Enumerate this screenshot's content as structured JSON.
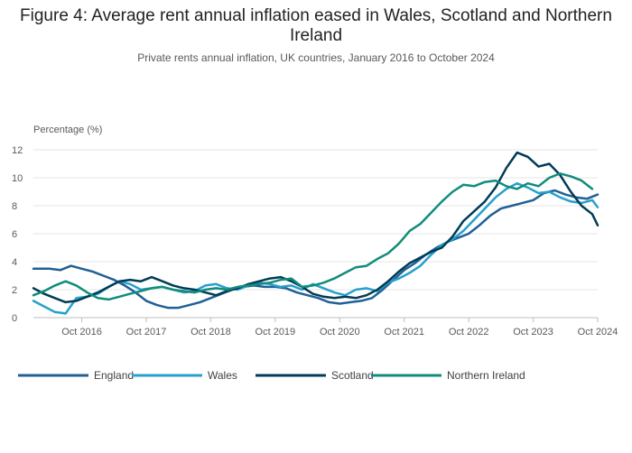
{
  "title": "Figure 4: Average rent annual inflation eased in Wales, Scotland and Northern Ireland",
  "subtitle": "Private rents annual inflation, UK countries, January 2016 to October 2024",
  "chart_data": {
    "type": "line",
    "ylabel": "Percentage (%)",
    "ylim": [
      0,
      12
    ],
    "yticks": [
      0,
      2,
      4,
      6,
      8,
      10,
      12
    ],
    "xrange": [
      "2016-01",
      "2024-10"
    ],
    "xtick_labels": [
      "Oct 2016",
      "Oct 2017",
      "Oct 2018",
      "Oct 2019",
      "Oct 2020",
      "Oct 2021",
      "Oct 2022",
      "Oct 2023",
      "Oct 2024"
    ],
    "xtick_dates": [
      "2016-10",
      "2017-10",
      "2018-10",
      "2019-10",
      "2020-10",
      "2021-10",
      "2022-10",
      "2023-10",
      "2024-10"
    ],
    "grid": "horizontal",
    "legend": "bottom",
    "series": [
      {
        "name": "England",
        "color": "#206095",
        "points": [
          [
            "2016-01",
            3.5
          ],
          [
            "2016-04",
            3.5
          ],
          [
            "2016-06",
            3.4
          ],
          [
            "2016-08",
            3.7
          ],
          [
            "2016-10",
            3.5
          ],
          [
            "2016-12",
            3.3
          ],
          [
            "2017-02",
            3.0
          ],
          [
            "2017-04",
            2.7
          ],
          [
            "2017-06",
            2.3
          ],
          [
            "2017-08",
            1.8
          ],
          [
            "2017-10",
            1.2
          ],
          [
            "2017-12",
            0.9
          ],
          [
            "2018-02",
            0.7
          ],
          [
            "2018-04",
            0.7
          ],
          [
            "2018-06",
            0.9
          ],
          [
            "2018-08",
            1.1
          ],
          [
            "2018-10",
            1.4
          ],
          [
            "2018-12",
            1.7
          ],
          [
            "2019-02",
            2.0
          ],
          [
            "2019-04",
            2.2
          ],
          [
            "2019-06",
            2.3
          ],
          [
            "2019-08",
            2.2
          ],
          [
            "2019-10",
            2.2
          ],
          [
            "2019-12",
            2.1
          ],
          [
            "2020-02",
            1.8
          ],
          [
            "2020-04",
            1.6
          ],
          [
            "2020-06",
            1.4
          ],
          [
            "2020-08",
            1.1
          ],
          [
            "2020-10",
            1.0
          ],
          [
            "2020-12",
            1.1
          ],
          [
            "2021-02",
            1.2
          ],
          [
            "2021-04",
            1.4
          ],
          [
            "2021-06",
            2.0
          ],
          [
            "2021-08",
            2.7
          ],
          [
            "2021-10",
            3.4
          ],
          [
            "2021-12",
            3.9
          ],
          [
            "2022-02",
            4.5
          ],
          [
            "2022-04",
            5.0
          ],
          [
            "2022-06",
            5.4
          ],
          [
            "2022-08",
            5.7
          ],
          [
            "2022-10",
            6.0
          ],
          [
            "2022-12",
            6.6
          ],
          [
            "2023-02",
            7.3
          ],
          [
            "2023-04",
            7.8
          ],
          [
            "2023-06",
            8.0
          ],
          [
            "2023-08",
            8.2
          ],
          [
            "2023-10",
            8.4
          ],
          [
            "2023-12",
            8.9
          ],
          [
            "2024-02",
            9.1
          ],
          [
            "2024-04",
            8.8
          ],
          [
            "2024-06",
            8.6
          ],
          [
            "2024-08",
            8.5
          ],
          [
            "2024-10",
            8.8
          ]
        ]
      },
      {
        "name": "Wales",
        "color": "#27a0cc",
        "points": [
          [
            "2016-01",
            1.2
          ],
          [
            "2016-03",
            0.8
          ],
          [
            "2016-05",
            0.4
          ],
          [
            "2016-07",
            0.3
          ],
          [
            "2016-09",
            1.4
          ],
          [
            "2016-11",
            1.5
          ],
          [
            "2017-01",
            1.7
          ],
          [
            "2017-03",
            2.2
          ],
          [
            "2017-05",
            2.6
          ],
          [
            "2017-07",
            2.4
          ],
          [
            "2017-09",
            2.0
          ],
          [
            "2017-11",
            2.1
          ],
          [
            "2018-01",
            2.2
          ],
          [
            "2018-03",
            2.0
          ],
          [
            "2018-05",
            1.8
          ],
          [
            "2018-07",
            1.9
          ],
          [
            "2018-09",
            2.3
          ],
          [
            "2018-11",
            2.4
          ],
          [
            "2019-01",
            2.1
          ],
          [
            "2019-03",
            2.0
          ],
          [
            "2019-05",
            2.3
          ],
          [
            "2019-07",
            2.5
          ],
          [
            "2019-09",
            2.4
          ],
          [
            "2019-11",
            2.2
          ],
          [
            "2020-01",
            2.3
          ],
          [
            "2020-03",
            2.0
          ],
          [
            "2020-05",
            2.4
          ],
          [
            "2020-07",
            2.1
          ],
          [
            "2020-09",
            1.8
          ],
          [
            "2020-11",
            1.6
          ],
          [
            "2021-01",
            2.0
          ],
          [
            "2021-03",
            2.1
          ],
          [
            "2021-05",
            1.9
          ],
          [
            "2021-07",
            2.5
          ],
          [
            "2021-09",
            2.8
          ],
          [
            "2021-11",
            3.2
          ],
          [
            "2022-01",
            3.7
          ],
          [
            "2022-03",
            4.5
          ],
          [
            "2022-05",
            5.2
          ],
          [
            "2022-07",
            5.6
          ],
          [
            "2022-09",
            6.2
          ],
          [
            "2022-11",
            7.0
          ],
          [
            "2023-01",
            7.8
          ],
          [
            "2023-03",
            8.6
          ],
          [
            "2023-05",
            9.2
          ],
          [
            "2023-07",
            9.6
          ],
          [
            "2023-09",
            9.3
          ],
          [
            "2023-11",
            8.9
          ],
          [
            "2024-01",
            9.0
          ],
          [
            "2024-03",
            8.6
          ],
          [
            "2024-05",
            8.3
          ],
          [
            "2024-07",
            8.2
          ],
          [
            "2024-09",
            8.4
          ],
          [
            "2024-10",
            7.9
          ]
        ]
      },
      {
        "name": "Scotland",
        "color": "#003c57",
        "points": [
          [
            "2016-01",
            2.1
          ],
          [
            "2016-03",
            1.7
          ],
          [
            "2016-05",
            1.4
          ],
          [
            "2016-07",
            1.1
          ],
          [
            "2016-09",
            1.2
          ],
          [
            "2016-11",
            1.5
          ],
          [
            "2017-01",
            1.8
          ],
          [
            "2017-03",
            2.2
          ],
          [
            "2017-05",
            2.6
          ],
          [
            "2017-07",
            2.7
          ],
          [
            "2017-09",
            2.6
          ],
          [
            "2017-11",
            2.9
          ],
          [
            "2018-01",
            2.6
          ],
          [
            "2018-03",
            2.3
          ],
          [
            "2018-05",
            2.1
          ],
          [
            "2018-07",
            2.0
          ],
          [
            "2018-09",
            1.8
          ],
          [
            "2018-11",
            1.6
          ],
          [
            "2019-01",
            1.9
          ],
          [
            "2019-03",
            2.1
          ],
          [
            "2019-05",
            2.4
          ],
          [
            "2019-07",
            2.6
          ],
          [
            "2019-09",
            2.8
          ],
          [
            "2019-11",
            2.9
          ],
          [
            "2020-01",
            2.6
          ],
          [
            "2020-03",
            2.2
          ],
          [
            "2020-05",
            1.7
          ],
          [
            "2020-07",
            1.5
          ],
          [
            "2020-09",
            1.4
          ],
          [
            "2020-11",
            1.5
          ],
          [
            "2021-01",
            1.4
          ],
          [
            "2021-03",
            1.6
          ],
          [
            "2021-05",
            2.0
          ],
          [
            "2021-07",
            2.6
          ],
          [
            "2021-09",
            3.3
          ],
          [
            "2021-11",
            3.9
          ],
          [
            "2022-01",
            4.3
          ],
          [
            "2022-03",
            4.7
          ],
          [
            "2022-05",
            5.0
          ],
          [
            "2022-07",
            5.8
          ],
          [
            "2022-09",
            6.9
          ],
          [
            "2022-11",
            7.6
          ],
          [
            "2023-01",
            8.3
          ],
          [
            "2023-03",
            9.3
          ],
          [
            "2023-05",
            10.7
          ],
          [
            "2023-07",
            11.8
          ],
          [
            "2023-09",
            11.5
          ],
          [
            "2023-11",
            10.8
          ],
          [
            "2024-01",
            11.0
          ],
          [
            "2024-03",
            10.2
          ],
          [
            "2024-05",
            9.0
          ],
          [
            "2024-07",
            8.0
          ],
          [
            "2024-09",
            7.4
          ],
          [
            "2024-10",
            6.6
          ]
        ]
      },
      {
        "name": "Northern Ireland",
        "color": "#118c7b",
        "points": [
          [
            "2016-01",
            1.6
          ],
          [
            "2016-03",
            1.9
          ],
          [
            "2016-05",
            2.3
          ],
          [
            "2016-07",
            2.6
          ],
          [
            "2016-09",
            2.3
          ],
          [
            "2016-11",
            1.8
          ],
          [
            "2017-01",
            1.4
          ],
          [
            "2017-03",
            1.3
          ],
          [
            "2017-05",
            1.5
          ],
          [
            "2017-07",
            1.7
          ],
          [
            "2017-09",
            1.9
          ],
          [
            "2017-11",
            2.1
          ],
          [
            "2018-01",
            2.2
          ],
          [
            "2018-03",
            2.0
          ],
          [
            "2018-05",
            1.9
          ],
          [
            "2018-07",
            1.8
          ],
          [
            "2018-09",
            2.0
          ],
          [
            "2018-11",
            2.1
          ],
          [
            "2019-01",
            2.0
          ],
          [
            "2019-03",
            2.2
          ],
          [
            "2019-05",
            2.3
          ],
          [
            "2019-07",
            2.4
          ],
          [
            "2019-09",
            2.5
          ],
          [
            "2019-11",
            2.7
          ],
          [
            "2020-01",
            2.8
          ],
          [
            "2020-03",
            2.2
          ],
          [
            "2020-05",
            2.3
          ],
          [
            "2020-07",
            2.5
          ],
          [
            "2020-09",
            2.8
          ],
          [
            "2020-11",
            3.2
          ],
          [
            "2021-01",
            3.6
          ],
          [
            "2021-03",
            3.7
          ],
          [
            "2021-05",
            4.2
          ],
          [
            "2021-07",
            4.6
          ],
          [
            "2021-09",
            5.3
          ],
          [
            "2021-11",
            6.2
          ],
          [
            "2022-01",
            6.7
          ],
          [
            "2022-03",
            7.5
          ],
          [
            "2022-05",
            8.3
          ],
          [
            "2022-07",
            9.0
          ],
          [
            "2022-09",
            9.5
          ],
          [
            "2022-11",
            9.4
          ],
          [
            "2023-01",
            9.7
          ],
          [
            "2023-03",
            9.8
          ],
          [
            "2023-05",
            9.4
          ],
          [
            "2023-07",
            9.2
          ],
          [
            "2023-09",
            9.6
          ],
          [
            "2023-11",
            9.4
          ],
          [
            "2024-01",
            10.0
          ],
          [
            "2024-03",
            10.3
          ],
          [
            "2024-05",
            10.1
          ],
          [
            "2024-07",
            9.8
          ],
          [
            "2024-09",
            9.2
          ]
        ]
      }
    ]
  }
}
